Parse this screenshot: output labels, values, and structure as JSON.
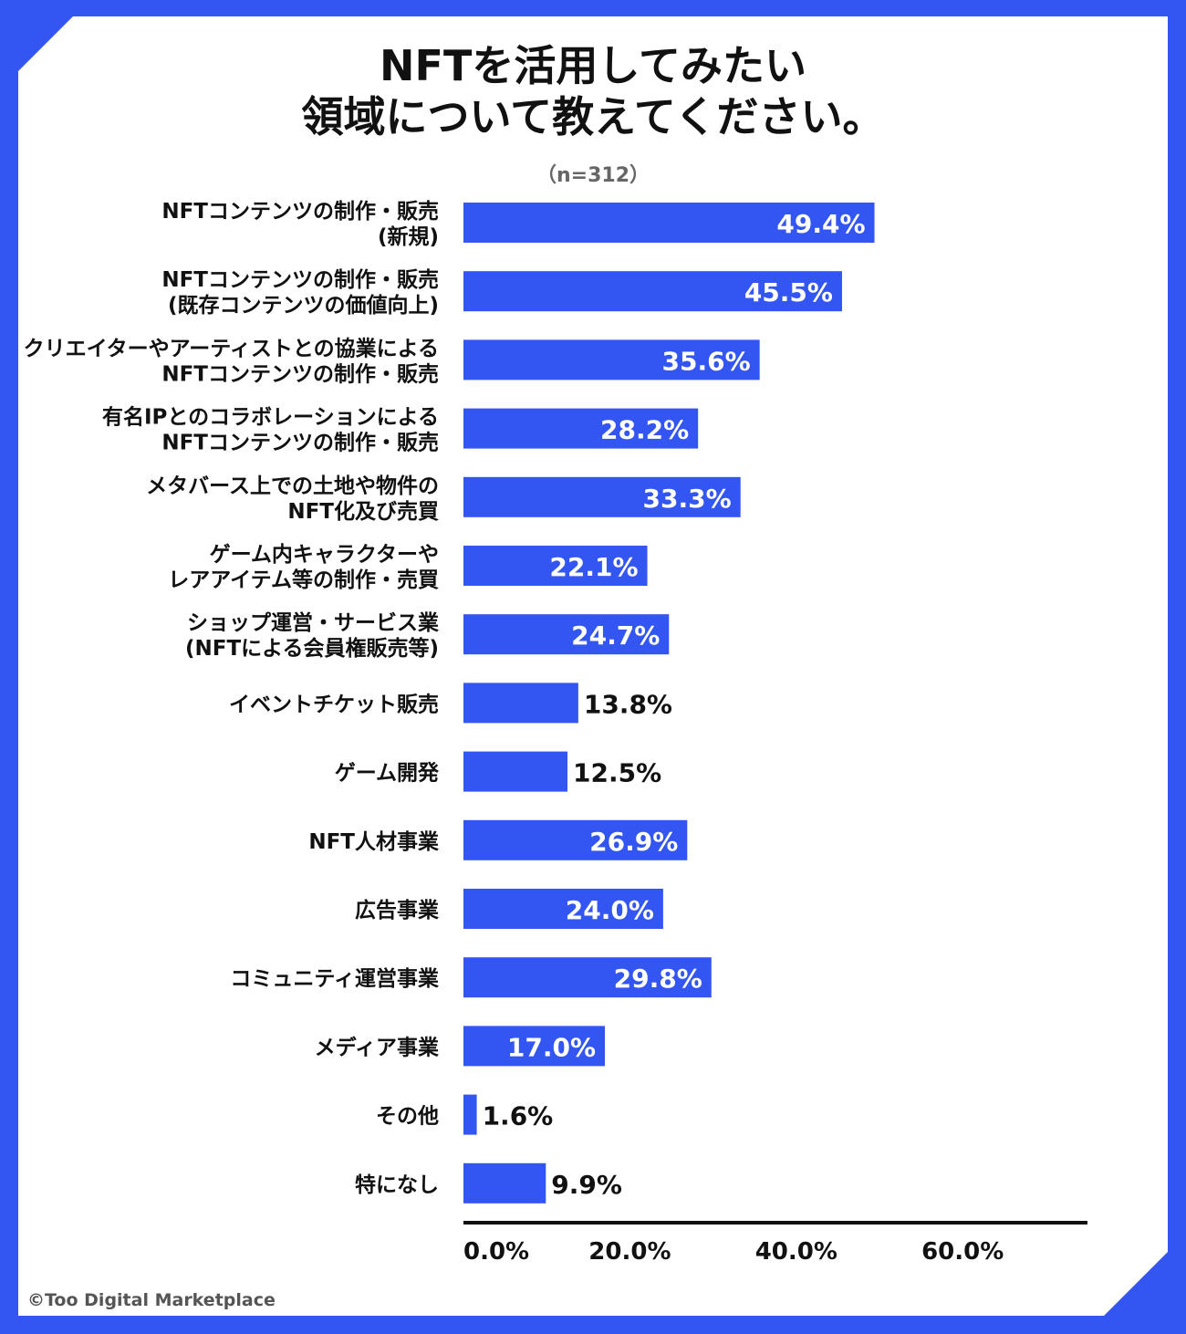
{
  "title_lines": [
    "NFTを活用してみたい",
    "領域について教えてください。"
  ],
  "sample_size": "（n=312）",
  "credit": "©Too Digital Marketplace",
  "colors": {
    "accent": "#3355f2",
    "bar": "#3355f2",
    "text": "#111111"
  },
  "chart_data": {
    "type": "bar",
    "orientation": "horizontal",
    "title": "NFTを活用してみたい領域について教えてください。",
    "xlabel": "",
    "ylabel": "",
    "xlim": [
      0,
      75
    ],
    "x_ticks": [
      0,
      20,
      40,
      60
    ],
    "x_tick_labels": [
      "0.0%",
      "20.0%",
      "40.0%",
      "60.0%"
    ],
    "categories": [
      [
        "NFTコンテンツの制作・販売",
        "(新規)"
      ],
      [
        "NFTコンテンツの制作・販売",
        "(既存コンテンツの価値向上)"
      ],
      [
        "クリエイターやアーティストとの協業による",
        "NFTコンテンツの制作・販売"
      ],
      [
        "有名IPとのコラボレーションによる",
        "NFTコンテンツの制作・販売"
      ],
      [
        "メタバース上での土地や物件の",
        "NFT化及び売買"
      ],
      [
        "ゲーム内キャラクターや",
        "レアアイテム等の制作・売買"
      ],
      [
        "ショップ運営・サービス業",
        "(NFTによる会員権販売等)"
      ],
      [
        "イベントチケット販売"
      ],
      [
        "ゲーム開発"
      ],
      [
        "NFT人材事業"
      ],
      [
        "広告事業"
      ],
      [
        "コミュニティ運営事業"
      ],
      [
        "メディア事業"
      ],
      [
        "その他"
      ],
      [
        "特になし"
      ]
    ],
    "values": [
      49.4,
      45.5,
      35.6,
      28.2,
      33.3,
      22.1,
      24.7,
      13.8,
      12.5,
      26.9,
      24.0,
      29.8,
      17.0,
      1.6,
      9.9
    ],
    "value_labels": [
      "49.4%",
      "45.5%",
      "35.6%",
      "28.2%",
      "33.3%",
      "22.1%",
      "24.7%",
      "13.8%",
      "12.5%",
      "26.9%",
      "24.0%",
      "29.8%",
      "17.0%",
      "1.6%",
      "9.9%"
    ],
    "labels_inside": [
      true,
      true,
      true,
      true,
      true,
      true,
      true,
      false,
      false,
      true,
      true,
      true,
      true,
      false,
      false
    ]
  }
}
